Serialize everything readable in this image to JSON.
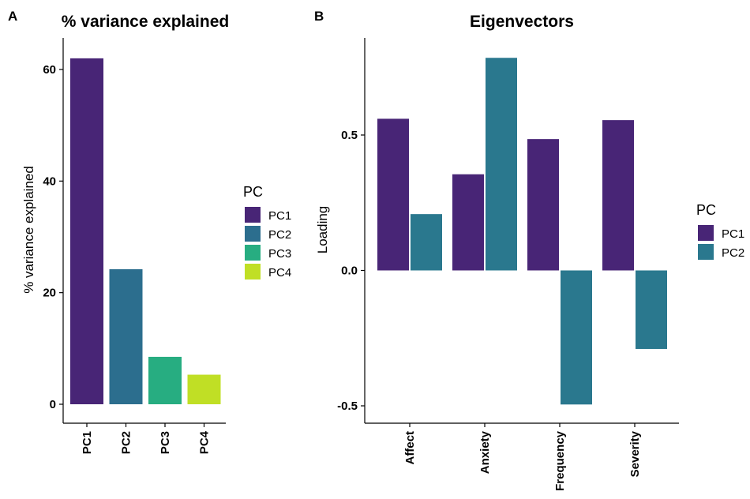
{
  "figure": {
    "panel_a_letter": "A",
    "panel_b_letter": "B"
  },
  "chart_data": [
    {
      "type": "bar",
      "title": "% variance explained",
      "xlabel": "",
      "ylabel": "% variance explained",
      "categories": [
        "PC1",
        "PC2",
        "PC3",
        "PC4"
      ],
      "values": [
        62,
        24.2,
        8.5,
        5.3
      ],
      "colors": [
        "#482576",
        "#2c6e8e",
        "#27ad81",
        "#c0df25"
      ],
      "ylim": [
        0,
        63.5
      ],
      "yticks": [
        0,
        20,
        40,
        60
      ],
      "ytick_labels": [
        "0",
        "20",
        "40",
        "60"
      ],
      "legend": {
        "title": "PC",
        "entries": [
          "PC1",
          "PC2",
          "PC3",
          "PC4"
        ],
        "placement": "right"
      },
      "grid": false
    },
    {
      "type": "bar",
      "title": "Eigenvectors",
      "xlabel": "",
      "ylabel": "Loading",
      "categories": [
        "Affect",
        "Anxiety",
        "Frequency",
        "Severity"
      ],
      "series": [
        {
          "name": "PC1",
          "values": [
            0.56,
            0.355,
            0.485,
            0.555
          ],
          "color": "#482576"
        },
        {
          "name": "PC2",
          "values": [
            0.208,
            0.785,
            -0.495,
            -0.29
          ],
          "color": "#2a788e"
        }
      ],
      "ylim": [
        -0.565,
        0.865
      ],
      "yticks": [
        -0.5,
        0,
        0.5
      ],
      "ytick_labels": [
        "-0.5",
        "0.0",
        "0.5"
      ],
      "legend": {
        "title": "PC",
        "entries": [
          "PC1",
          "PC2"
        ],
        "placement": "right"
      },
      "grid": false
    }
  ]
}
